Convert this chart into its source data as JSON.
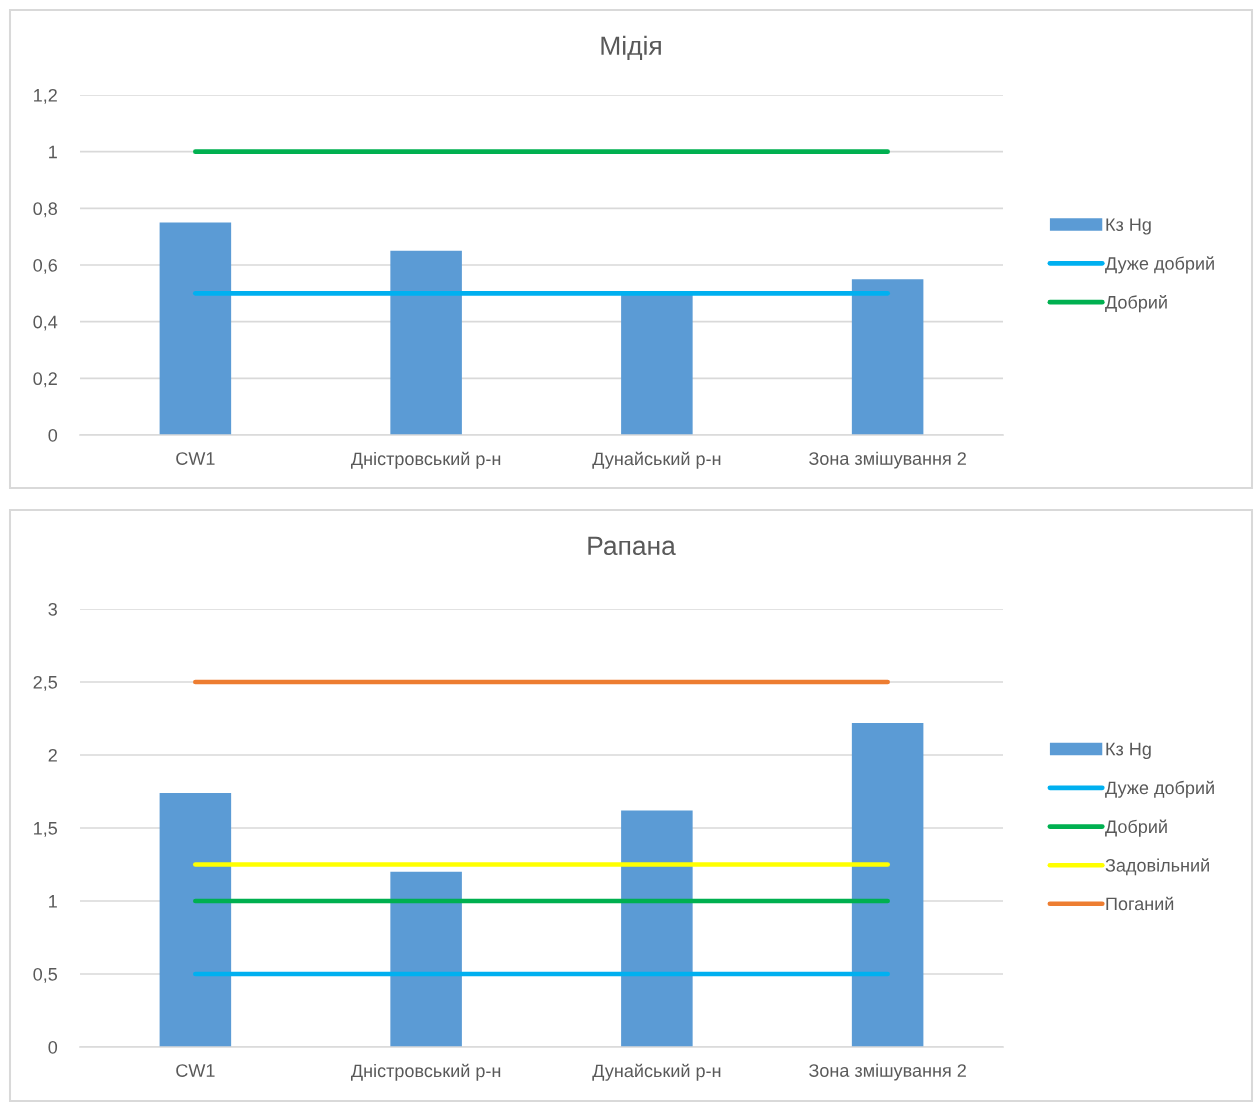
{
  "chart_data": [
    {
      "type": "bar",
      "title": "Мідія",
      "categories": [
        "CW1",
        "Дністровський р-н",
        "Дунайський р-н",
        "Зона змішування 2"
      ],
      "series": [
        {
          "name": "Кз Hg",
          "color": "#5b9bd5",
          "values": [
            0.75,
            0.65,
            0.5,
            0.55
          ]
        },
        {
          "name": "Дуже добрий",
          "type": "line",
          "color": "#00b0f0",
          "values": [
            0.5,
            0.5,
            0.5,
            0.5
          ]
        },
        {
          "name": "Добрий",
          "type": "line",
          "color": "#00b050",
          "values": [
            1,
            1,
            1,
            1
          ]
        }
      ],
      "ylim": [
        0,
        1.2
      ],
      "yticks": [
        0,
        {
          "value": 0.2,
          "label": "0,2"
        },
        {
          "value": 0.4,
          "label": "0,4"
        },
        {
          "value": 0.6,
          "label": "0,6"
        },
        {
          "value": 0.8,
          "label": "0,8"
        },
        1,
        {
          "value": 1.2,
          "label": "1,2"
        }
      ],
      "grid": "y",
      "legend": "right"
    },
    {
      "type": "bar",
      "title": "Рапана",
      "categories": [
        "CW1",
        "Дністровський р-н",
        "Дунайський р-н",
        "Зона змішування 2"
      ],
      "series": [
        {
          "name": "Кз Hg",
          "color": "#5b9bd5",
          "values": [
            1.74,
            1.2,
            1.62,
            2.22
          ]
        },
        {
          "name": "Дуже добрий",
          "type": "line",
          "color": "#00b0f0",
          "values": [
            0.5,
            0.5,
            0.5,
            0.5
          ]
        },
        {
          "name": "Добрий",
          "type": "line",
          "color": "#00b050",
          "values": [
            1,
            1,
            1,
            1
          ]
        },
        {
          "name": "Задовільний",
          "type": "line",
          "color": "#ffff00",
          "values": [
            1.25,
            1.25,
            1.25,
            1.25
          ]
        },
        {
          "name": "Поганий",
          "type": "line",
          "color": "#ed7d31",
          "values": [
            2.5,
            2.5,
            2.5,
            2.5
          ]
        }
      ],
      "ylim": [
        0,
        3
      ],
      "yticks": [
        0,
        {
          "value": 0.5,
          "label": "0,5"
        },
        1,
        {
          "value": 1.5,
          "label": "1,5"
        },
        2,
        {
          "value": 2.5,
          "label": "2,5"
        },
        3
      ],
      "grid": "y",
      "legend": "right"
    }
  ]
}
